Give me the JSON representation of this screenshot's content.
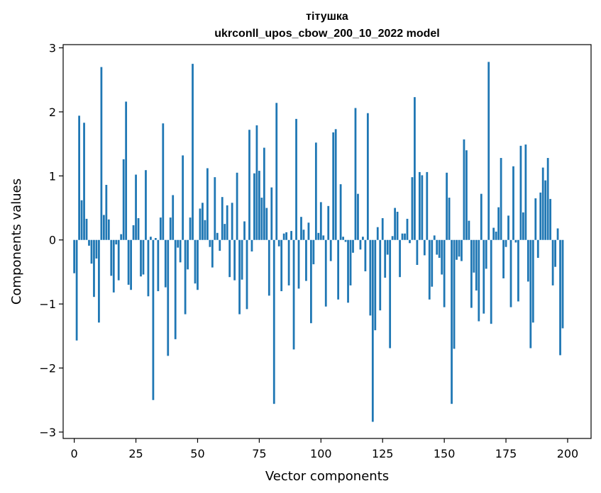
{
  "chart_data": {
    "type": "bar",
    "title_line1": "тітушка",
    "title_line2": "ukrconll_upos_cbow_200_10_2022 model",
    "xlabel": "Vector components",
    "ylabel": "Components values",
    "xlim": [
      -4.5,
      209.5
    ],
    "ylim": [
      -3.1,
      3.05
    ],
    "x_ticks": [
      0,
      25,
      50,
      75,
      100,
      125,
      150,
      175,
      200
    ],
    "y_ticks": [
      -3,
      -2,
      -1,
      0,
      1,
      2,
      3
    ],
    "grid": false,
    "bar_color": "#1f77b4",
    "values": [
      -0.52,
      -1.57,
      1.94,
      0.62,
      1.83,
      0.33,
      -0.09,
      -0.37,
      -0.89,
      -0.29,
      -1.29,
      2.7,
      0.39,
      0.86,
      0.32,
      -0.56,
      -0.82,
      -0.07,
      -0.63,
      0.09,
      1.26,
      2.16,
      -0.7,
      -0.78,
      0.23,
      1.02,
      0.34,
      -0.57,
      -0.54,
      1.09,
      -0.88,
      0.05,
      -2.5,
      0.03,
      -0.8,
      0.35,
      1.82,
      -0.74,
      -1.81,
      0.35,
      0.7,
      -1.55,
      -0.12,
      -0.35,
      1.32,
      -1.16,
      -0.46,
      0.35,
      2.75,
      -0.68,
      -0.78,
      0.49,
      0.58,
      0.31,
      1.12,
      -0.11,
      -0.43,
      0.98,
      0.11,
      -0.17,
      0.67,
      0.25,
      0.54,
      -0.58,
      0.58,
      -0.63,
      1.05,
      -1.16,
      -0.62,
      0.29,
      -1.08,
      1.72,
      -0.18,
      1.04,
      1.79,
      1.08,
      0.66,
      1.44,
      0.5,
      -0.87,
      0.82,
      -2.56,
      2.14,
      -0.1,
      -0.8,
      0.1,
      0.12,
      -0.71,
      0.14,
      -1.71,
      1.89,
      -0.76,
      0.36,
      0.16,
      -0.64,
      0.27,
      -1.3,
      -0.38,
      1.52,
      0.11,
      0.59,
      0.07,
      -1.04,
      0.53,
      -0.33,
      1.68,
      1.73,
      -0.93,
      0.87,
      0.05,
      -0.03,
      -0.98,
      -0.71,
      -0.2,
      2.06,
      0.72,
      -0.15,
      0.05,
      -0.49,
      1.98,
      -1.18,
      -2.84,
      -1.41,
      0.2,
      -1.1,
      0.34,
      -0.59,
      -0.23,
      -1.69,
      0.06,
      0.5,
      0.44,
      -0.58,
      0.1,
      0.1,
      0.33,
      -0.05,
      0.98,
      2.23,
      -0.39,
      1.06,
      1.01,
      -0.24,
      1.06,
      -0.93,
      -0.73,
      0.07,
      -0.23,
      -0.28,
      -0.54,
      -1.05,
      1.05,
      0.66,
      -2.56,
      -1.7,
      -0.31,
      -0.26,
      -0.33,
      1.57,
      1.4,
      0.3,
      -1.06,
      -0.51,
      -0.79,
      -1.27,
      0.72,
      -1.15,
      -0.45,
      2.78,
      -1.31,
      0.19,
      0.13,
      0.51,
      1.28,
      -0.6,
      -0.11,
      0.38,
      -1.05,
      1.15,
      -0.04,
      -0.96,
      1.47,
      0.43,
      1.49,
      -0.65,
      -1.69,
      -1.29,
      0.65,
      -0.28,
      0.74,
      1.13,
      0.93,
      1.28,
      0.64,
      -0.71,
      -0.42,
      0.18,
      -1.8,
      -1.38
    ]
  }
}
